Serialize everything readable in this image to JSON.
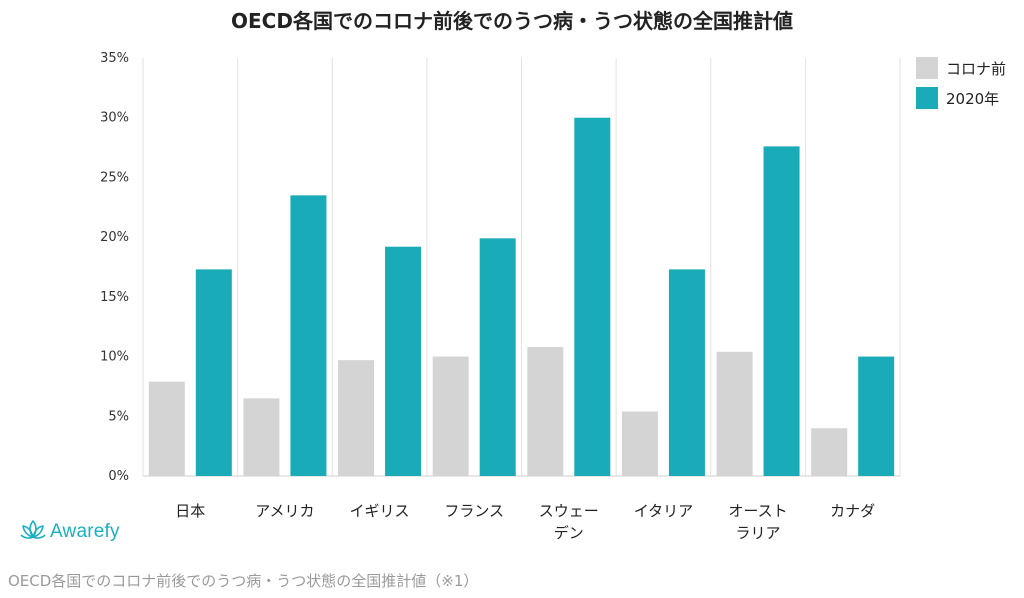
{
  "chart_data": {
    "type": "bar",
    "title": "OECD各国でのコロナ前後でのうつ病・うつ状態の全国推計値",
    "categories": [
      [
        "日本"
      ],
      [
        "アメリカ"
      ],
      [
        "イギリス"
      ],
      [
        "フランス"
      ],
      [
        "スウェー",
        "デン"
      ],
      [
        "イタリア"
      ],
      [
        "オースト",
        "ラリア"
      ],
      [
        "カナダ"
      ]
    ],
    "series": [
      {
        "name": "コロナ前",
        "color": "#d4d4d4",
        "values": [
          7.9,
          6.5,
          9.7,
          10.0,
          10.8,
          5.4,
          10.4,
          4.0
        ]
      },
      {
        "name": "2020年",
        "color": "#1aabb8",
        "values": [
          17.3,
          23.5,
          19.2,
          19.9,
          30.0,
          17.3,
          27.6,
          10.0
        ]
      }
    ],
    "ylim": [
      0,
      35
    ],
    "yticks": [
      0,
      5,
      10,
      15,
      20,
      25,
      30,
      35
    ],
    "ytick_suffix": "%",
    "grid": "vertical category separators",
    "legend_position": "top-right"
  },
  "brand": {
    "name": "Awarefy",
    "logo_icon": "lotus-icon",
    "color": "#1bb0bf"
  },
  "caption": "OECD各国でのコロナ前後でのうつ病・うつ状態の全国推計値（※1）"
}
